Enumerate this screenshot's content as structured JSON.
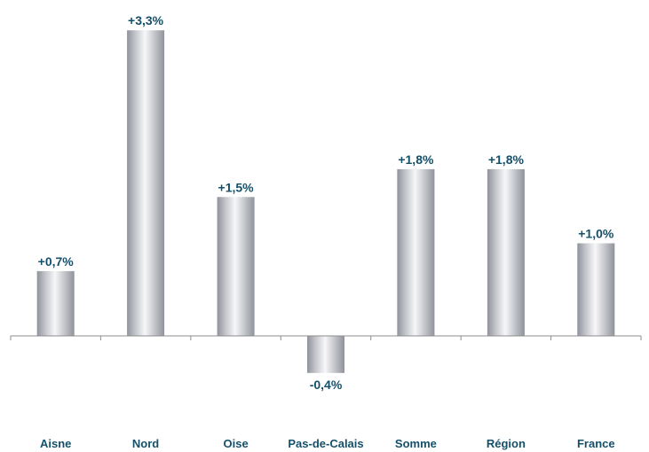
{
  "chart_data": {
    "type": "bar",
    "title": "",
    "xlabel": "",
    "ylabel": "",
    "categories": [
      "Aisne",
      "Nord",
      "Oise",
      "Pas-de-Calais",
      "Somme",
      "Région",
      "France"
    ],
    "values": [
      0.7,
      3.3,
      1.5,
      -0.4,
      1.8,
      1.8,
      1.0
    ],
    "data_labels": [
      "+0,7%",
      "+3,3%",
      "+1,5%",
      "-0,4%",
      "+1,8%",
      "+1,8%",
      "+1,0%"
    ],
    "ylim": [
      -0.4,
      3.3
    ],
    "grid": false,
    "legend": "none",
    "colors": {
      "bar_edge": "#8f929a",
      "bar_light": "#f7f7f9",
      "bar_mid": "#c3c5cb",
      "label": "#14506a",
      "axis": "#8c8c8c"
    }
  }
}
